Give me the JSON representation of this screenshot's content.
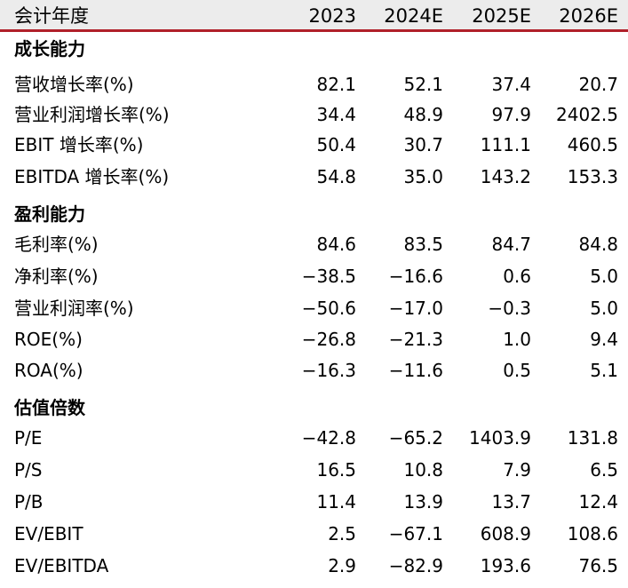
{
  "header": {
    "label": "会计年度",
    "years": [
      "2023",
      "2024E",
      "2025E",
      "2026E"
    ]
  },
  "sections": [
    {
      "title": "成长能力",
      "rows": [
        {
          "label": "营收增长率(%)",
          "values": [
            "82.1",
            "52.1",
            "37.4",
            "20.7"
          ]
        },
        {
          "label": "营业利润增长率(%)",
          "values": [
            "34.4",
            "48.9",
            "97.9",
            "2402.5"
          ]
        },
        {
          "label": "EBIT 增长率(%)",
          "values": [
            "50.4",
            "30.7",
            "111.1",
            "460.5"
          ]
        },
        {
          "label": "EBITDA 增长率(%)",
          "values": [
            "54.8",
            "35.0",
            "143.2",
            "153.3"
          ]
        }
      ]
    },
    {
      "title": "盈利能力",
      "rows": [
        {
          "label": "毛利率(%)",
          "values": [
            "84.6",
            "83.5",
            "84.7",
            "84.8"
          ]
        },
        {
          "label": "净利率(%)",
          "values": [
            "−38.5",
            "−16.6",
            "0.6",
            "5.0"
          ]
        },
        {
          "label": "营业利润率(%)",
          "values": [
            "−50.6",
            "−17.0",
            "−0.3",
            "5.0"
          ]
        },
        {
          "label": "ROE(%)",
          "values": [
            "−26.8",
            "−21.3",
            "1.0",
            "9.4"
          ]
        },
        {
          "label": "ROA(%)",
          "values": [
            "−16.3",
            "−11.6",
            "0.5",
            "5.1"
          ]
        }
      ]
    },
    {
      "title": "估值倍数",
      "rows": [
        {
          "label": "P/E",
          "values": [
            "−42.8",
            "−65.2",
            "1403.9",
            "131.8"
          ]
        },
        {
          "label": "P/S",
          "values": [
            "16.5",
            "10.8",
            "7.9",
            "6.5"
          ]
        },
        {
          "label": "P/B",
          "values": [
            "11.4",
            "13.9",
            "13.7",
            "12.4"
          ]
        },
        {
          "label": "EV/EBIT",
          "values": [
            "2.5",
            "−67.1",
            "608.9",
            "108.6"
          ]
        },
        {
          "label": "EV/EBITDA",
          "values": [
            "2.9",
            "−82.9",
            "193.6",
            "76.5"
          ]
        }
      ]
    }
  ]
}
